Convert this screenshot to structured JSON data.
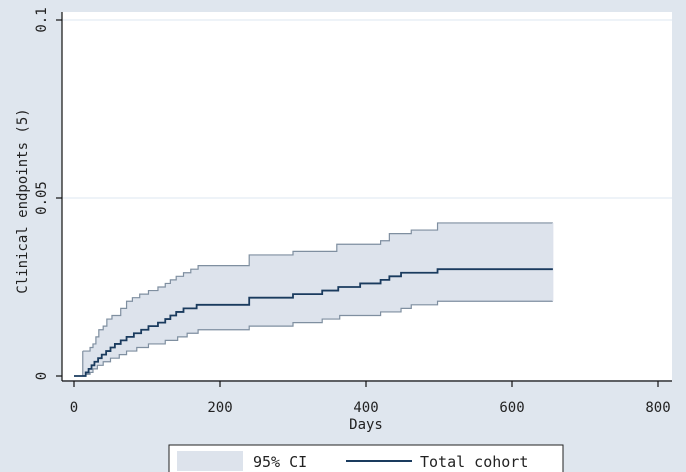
{
  "chart_data": {
    "type": "line",
    "title": "",
    "xlabel": "Days",
    "ylabel": "Clinical endpoints (5)",
    "xlim": [
      0,
      800
    ],
    "ylim": [
      0,
      0.1
    ],
    "xticks": [
      {
        "value": 0,
        "label": "0"
      },
      {
        "value": 200,
        "label": "200"
      },
      {
        "value": 400,
        "label": "400"
      },
      {
        "value": 600,
        "label": "600"
      },
      {
        "value": 800,
        "label": "800"
      }
    ],
    "yticks": [
      {
        "value": 0,
        "label": "0"
      },
      {
        "value": 0.05,
        "label": "0.05"
      },
      {
        "value": 0.1,
        "label": "0.1"
      }
    ],
    "grid": true,
    "legend_position": "bottom",
    "series": [
      {
        "name": "Total cohort",
        "kind": "step-line",
        "color": "#1a3b5e",
        "points": [
          [
            0,
            0
          ],
          [
            12,
            0
          ],
          [
            16,
            0.001
          ],
          [
            20,
            0.002
          ],
          [
            24,
            0.003
          ],
          [
            28,
            0.004
          ],
          [
            33,
            0.005
          ],
          [
            38,
            0.006
          ],
          [
            44,
            0.007
          ],
          [
            50,
            0.008
          ],
          [
            56,
            0.009
          ],
          [
            64,
            0.01
          ],
          [
            72,
            0.011
          ],
          [
            82,
            0.012
          ],
          [
            92,
            0.013
          ],
          [
            102,
            0.014
          ],
          [
            115,
            0.015
          ],
          [
            125,
            0.016
          ],
          [
            132,
            0.017
          ],
          [
            140,
            0.018
          ],
          [
            150,
            0.019
          ],
          [
            168,
            0.02
          ],
          [
            240,
            0.022
          ],
          [
            300,
            0.023
          ],
          [
            340,
            0.024
          ],
          [
            362,
            0.025
          ],
          [
            392,
            0.026
          ],
          [
            420,
            0.027
          ],
          [
            432,
            0.028
          ],
          [
            448,
            0.029
          ],
          [
            498,
            0.03
          ],
          [
            656,
            0.03
          ]
        ]
      },
      {
        "name": "95% CI",
        "kind": "band",
        "color": "#dde3ec",
        "edge_color": "#7f8fa0",
        "upper": [
          [
            12,
            0.007
          ],
          [
            22,
            0.008
          ],
          [
            26,
            0.009
          ],
          [
            30,
            0.011
          ],
          [
            34,
            0.013
          ],
          [
            40,
            0.014
          ],
          [
            45,
            0.016
          ],
          [
            52,
            0.017
          ],
          [
            64,
            0.019
          ],
          [
            72,
            0.021
          ],
          [
            80,
            0.022
          ],
          [
            90,
            0.023
          ],
          [
            102,
            0.024
          ],
          [
            115,
            0.025
          ],
          [
            125,
            0.026
          ],
          [
            132,
            0.027
          ],
          [
            140,
            0.028
          ],
          [
            150,
            0.029
          ],
          [
            160,
            0.03
          ],
          [
            170,
            0.031
          ],
          [
            240,
            0.034
          ],
          [
            300,
            0.035
          ],
          [
            360,
            0.037
          ],
          [
            420,
            0.038
          ],
          [
            432,
            0.04
          ],
          [
            462,
            0.041
          ],
          [
            498,
            0.043
          ],
          [
            656,
            0.043
          ]
        ],
        "lower": [
          [
            12,
            0
          ],
          [
            16,
            0.0005
          ],
          [
            22,
            0.001
          ],
          [
            26,
            0.002
          ],
          [
            32,
            0.003
          ],
          [
            40,
            0.004
          ],
          [
            50,
            0.005
          ],
          [
            62,
            0.006
          ],
          [
            72,
            0.007
          ],
          [
            86,
            0.008
          ],
          [
            102,
            0.009
          ],
          [
            125,
            0.01
          ],
          [
            142,
            0.011
          ],
          [
            155,
            0.012
          ],
          [
            170,
            0.013
          ],
          [
            240,
            0.014
          ],
          [
            300,
            0.015
          ],
          [
            340,
            0.016
          ],
          [
            364,
            0.017
          ],
          [
            420,
            0.018
          ],
          [
            448,
            0.019
          ],
          [
            462,
            0.02
          ],
          [
            498,
            0.021
          ],
          [
            656,
            0.021
          ]
        ]
      }
    ],
    "legend": [
      {
        "label": "95% CI",
        "kind": "band"
      },
      {
        "label": "Total cohort",
        "kind": "line"
      }
    ]
  },
  "style": {
    "page_bg": "#dfe6ee",
    "plot_bg": "#ffffff",
    "grid_color": "#e3ecf3",
    "axis_color": "#111111",
    "legend_bg": "#ffffff",
    "legend_border": "#222222"
  }
}
